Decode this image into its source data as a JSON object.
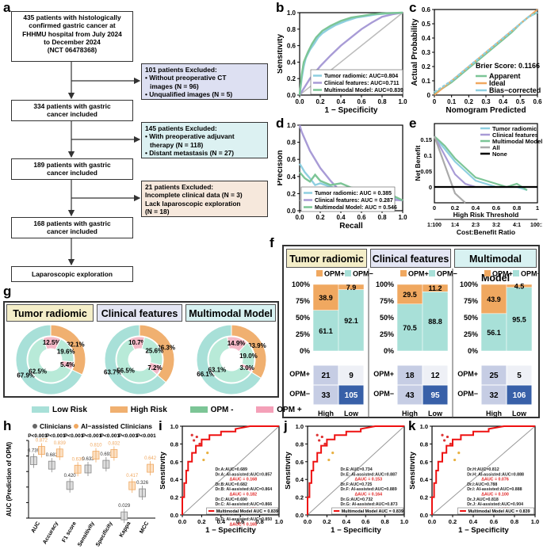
{
  "panel_letters": [
    "a",
    "b",
    "c",
    "d",
    "e",
    "f",
    "g",
    "h",
    "i",
    "j",
    "k"
  ],
  "flowchart": {
    "main_boxes": [
      [
        "435 patients with histologically",
        "confirmed gastric cancer at",
        "FHHMU hospital from July 2024",
        "to December 2024",
        "(NCT 06478368)"
      ],
      [
        "334 patients with gastric",
        "cancer included"
      ],
      [
        "189 patients with gastric",
        "cancer included"
      ],
      [
        "168 patients with gastric",
        "cancer included"
      ],
      [
        "Laparoscopic exploration"
      ]
    ],
    "exclusion_boxes": [
      [
        "101 patients Excluded:",
        "• Without preoperative CT",
        "  images (N = 96)",
        "• Unqualified images (N = 5)"
      ],
      [
        "145 patients Excluded:",
        "• With preoperative adjuvant",
        "  therapy (N = 118)",
        "• Distant metastasis (N = 27)"
      ],
      [
        "21 patients Excluded:",
        "Incomplete clinical data (N = 3)",
        "Lack laparoscopic exploration",
        "(N = 18)"
      ]
    ]
  },
  "colors": {
    "tumor": "#8ecfe0",
    "clinical": "#a89bd6",
    "multimodal": "#7cc596",
    "opm_pos": "#f0a860",
    "opm_neg": "#a8e0d8",
    "low_risk": "#a8e0d8",
    "high_risk": "#f0b070",
    "pink": "#f4a0b8",
    "roc_red": "#ee1111"
  },
  "chart_data": [
    {
      "id": "b",
      "type": "line",
      "xlabel": "1 − Specificity",
      "ylabel": "Sensitivity",
      "xlim": [
        0,
        1
      ],
      "ylim": [
        0,
        1
      ],
      "ticks": [
        "0.0",
        "0.2",
        "0.4",
        "0.6",
        "0.8",
        "1.0"
      ],
      "series": [
        {
          "name": "Tumor radiomic: AUC=0.804",
          "color": "#8ecfe0",
          "x": [
            0,
            0.02,
            0.04,
            0.06,
            0.1,
            0.14,
            0.18,
            0.22,
            0.28,
            0.35,
            0.45,
            0.55,
            0.65,
            0.75,
            0.85,
            1
          ],
          "y": [
            0,
            0.2,
            0.35,
            0.45,
            0.55,
            0.62,
            0.7,
            0.75,
            0.8,
            0.85,
            0.9,
            0.94,
            0.96,
            0.98,
            0.99,
            1
          ]
        },
        {
          "name": "Clinical features: AUC=0.711",
          "color": "#a89bd6",
          "x": [
            0,
            0.05,
            0.1,
            0.2,
            0.3,
            0.4,
            0.5,
            0.6,
            0.7,
            0.8,
            0.9,
            1
          ],
          "y": [
            0,
            0.1,
            0.2,
            0.35,
            0.48,
            0.6,
            0.7,
            0.8,
            0.88,
            0.95,
            0.98,
            1
          ]
        },
        {
          "name": "Multimodal Model: AUC=0.839",
          "color": "#7cc596",
          "x": [
            0,
            0.02,
            0.04,
            0.08,
            0.12,
            0.16,
            0.22,
            0.3,
            0.4,
            0.5,
            0.6,
            0.7,
            0.8,
            1
          ],
          "y": [
            0,
            0.25,
            0.4,
            0.52,
            0.62,
            0.7,
            0.78,
            0.84,
            0.9,
            0.94,
            0.96,
            0.98,
            0.99,
            1
          ]
        }
      ]
    },
    {
      "id": "c",
      "type": "line",
      "xlabel": "Nomogram Predicted",
      "ylabel": "Actual Probability",
      "xlim": [
        0,
        0.6
      ],
      "ylim": [
        0,
        0.6
      ],
      "ticks": [
        "0",
        "0.1",
        "0.2",
        "0.3",
        "0.4",
        "0.5",
        "0.6"
      ],
      "annotation": "Brier Score: 0.1166",
      "series": [
        {
          "name": "Apparent",
          "color": "#7cc596",
          "x": [
            0,
            0.05,
            0.1,
            0.15,
            0.2,
            0.25,
            0.3,
            0.35,
            0.4,
            0.45,
            0.5,
            0.55,
            0.6
          ],
          "y": [
            0.01,
            0.05,
            0.09,
            0.14,
            0.19,
            0.24,
            0.29,
            0.34,
            0.39,
            0.44,
            0.5,
            0.55,
            0.58
          ]
        },
        {
          "name": "Ideal",
          "color": "#f0a860",
          "x": [
            0,
            0.6
          ],
          "y": [
            0,
            0.6
          ]
        },
        {
          "name": "Bias−corrected",
          "color": "#8ecfe0",
          "x": [
            0,
            0.05,
            0.1,
            0.15,
            0.2,
            0.25,
            0.3,
            0.35,
            0.4,
            0.45,
            0.5,
            0.55,
            0.6
          ],
          "y": [
            0.02,
            0.06,
            0.1,
            0.15,
            0.2,
            0.25,
            0.3,
            0.35,
            0.4,
            0.45,
            0.5,
            0.55,
            0.58
          ]
        }
      ]
    },
    {
      "id": "d",
      "type": "line",
      "xlabel": "Recall",
      "ylabel": "Precision",
      "xlim": [
        0,
        1
      ],
      "ylim": [
        0,
        1
      ],
      "ticks": [
        "0.0",
        "0.2",
        "0.4",
        "0.6",
        "0.8",
        "1.0"
      ],
      "series": [
        {
          "name": "Tumor radiomic: AUC = 0.385",
          "color": "#8ecfe0",
          "x": [
            0,
            0.05,
            0.1,
            0.15,
            0.2,
            0.3,
            0.4,
            0.5,
            0.6,
            0.7,
            0.8,
            0.9,
            0.95,
            1
          ],
          "y": [
            0.55,
            0.45,
            0.38,
            0.3,
            0.32,
            0.28,
            0.25,
            0.24,
            0.22,
            0.2,
            0.18,
            0.15,
            0.14,
            0.12
          ]
        },
        {
          "name": "Clinical features: AUC = 0.287",
          "color": "#a89bd6",
          "x": [
            0,
            0.02,
            0.1,
            0.2,
            0.3,
            0.4,
            0.5,
            0.6,
            0.7,
            0.8,
            0.9,
            1
          ],
          "y": [
            1,
            0.92,
            0.7,
            0.5,
            0.35,
            0.22,
            0.18,
            0.16,
            0.15,
            0.14,
            0.13,
            0.12
          ]
        },
        {
          "name": "Multimodal Model: AUC = 0.546",
          "color": "#7cc596",
          "x": [
            0,
            0.05,
            0.1,
            0.15,
            0.2,
            0.3,
            0.4,
            0.5,
            0.6,
            0.7,
            0.8,
            0.9,
            0.95,
            1
          ],
          "y": [
            0.45,
            0.38,
            0.34,
            0.42,
            0.35,
            0.3,
            0.32,
            0.27,
            0.25,
            0.22,
            0.2,
            0.18,
            0.15,
            0.12
          ]
        }
      ]
    },
    {
      "id": "e",
      "type": "line",
      "xlabel": "High Risk Threshold",
      "ylabel": "Net Benefit",
      "x2label": "Cost:Benefit Ratio",
      "xlim": [
        0,
        1
      ],
      "ylim": [
        -0.05,
        0.2
      ],
      "xticks": [
        "0",
        "0.2",
        "0.4",
        "0.6",
        "0.8",
        "1"
      ],
      "yticks": [
        "0",
        "0.05",
        "0.1",
        "0.15"
      ],
      "x2ticks": [
        "1:100",
        "1:4",
        "2:3",
        "3:2",
        "4:1",
        "100:1"
      ],
      "series": [
        {
          "name": "Tumor radiomic",
          "color": "#8ecfe0",
          "x": [
            0,
            0.1,
            0.2,
            0.3,
            0.4,
            0.5,
            0.6,
            0.7,
            0.8,
            0.9
          ],
          "y": [
            0.16,
            0.12,
            0.08,
            0.05,
            0.02,
            0.01,
            0,
            0,
            0,
            -0.01
          ]
        },
        {
          "name": "Clinical features",
          "color": "#a89bd6",
          "x": [
            0,
            0.1,
            0.2,
            0.3,
            0.4
          ],
          "y": [
            0.16,
            0.1,
            0.04,
            0.01,
            0
          ]
        },
        {
          "name": "Multimodal Model",
          "color": "#7cc596",
          "x": [
            0,
            0.1,
            0.2,
            0.3,
            0.4,
            0.5,
            0.6,
            0.7,
            0.8,
            0.9
          ],
          "y": [
            0.16,
            0.13,
            0.09,
            0.06,
            0.03,
            0.02,
            0.01,
            0,
            0.01,
            -0.01
          ]
        },
        {
          "name": "All",
          "color": "#aaaaaa",
          "x": [
            0,
            0.1,
            0.2,
            0.3
          ],
          "y": [
            0.16,
            0.07,
            -0.02,
            -0.05
          ]
        },
        {
          "name": "None",
          "color": "#000000",
          "x": [
            0,
            1
          ],
          "y": [
            0,
            0
          ]
        }
      ]
    },
    {
      "id": "f",
      "type": "bar",
      "yticks": [
        "100%",
        "75%",
        "50%",
        "25%",
        "0%"
      ],
      "legend": [
        "OPM+",
        "OPM−"
      ],
      "groups": [
        {
          "title": "Tumor radiomic",
          "categories": [
            "High",
            "Low"
          ],
          "opm_pos": [
            38.9,
            7.9
          ],
          "opm_neg": [
            61.1,
            92.1
          ],
          "matrix": [
            [
              21,
              9
            ],
            [
              33,
              105
            ]
          ]
        },
        {
          "title": "Clinical features",
          "categories": [
            "High",
            "Low"
          ],
          "opm_pos": [
            29.5,
            11.2
          ],
          "opm_neg": [
            70.5,
            88.8
          ],
          "matrix": [
            [
              18,
              12
            ],
            [
              43,
              95
            ]
          ]
        },
        {
          "title": "Multimodal Model",
          "categories": [
            "High",
            "Low"
          ],
          "opm_pos": [
            43.9,
            4.5
          ],
          "opm_neg": [
            56.1,
            95.5
          ],
          "matrix": [
            [
              25,
              5
            ],
            [
              32,
              106
            ]
          ]
        }
      ],
      "matrix_rows": [
        "OPM+",
        "OPM−"
      ]
    },
    {
      "id": "g",
      "type": "pie",
      "legend": [
        "Low Risk",
        "High Risk",
        "OPM -",
        "OPM +"
      ],
      "groups": [
        {
          "title": "Tumor radiomic",
          "outer": [
            67.9,
            32.1
          ],
          "inner": [
            62.5,
            12.5,
            19.6,
            5.4
          ],
          "outer_labels": [
            "67.9%",
            "32.1%"
          ],
          "inner_labels": [
            "62.5%",
            "12.5%",
            "19.6%",
            "5.4%"
          ]
        },
        {
          "title": "Clinical features",
          "outer": [
            63.7,
            36.3
          ],
          "inner": [
            56.5,
            10.7,
            25.6,
            7.2
          ],
          "outer_labels": [
            "63.7%",
            "36.3%"
          ],
          "inner_labels": [
            "56.5%",
            "10.7%",
            "25.6%",
            "7.2%"
          ]
        },
        {
          "title": "Multimodal Model",
          "outer": [
            66.1,
            33.9
          ],
          "inner": [
            63.1,
            14.9,
            19.0,
            3.0
          ],
          "outer_labels": [
            "66.1%",
            "33.9%"
          ],
          "inner_labels": [
            "63.1%",
            "14.9%",
            "19.0%",
            "3.0%"
          ]
        }
      ]
    },
    {
      "id": "h",
      "type": "box",
      "ylabel": "AUC (Prediction of OPM)",
      "legend": [
        "Clinicians",
        "AI−assisted Clinicians"
      ],
      "categories": [
        "AUC",
        "Accuracy",
        "F1 score",
        "Sensitivity",
        "Specificity",
        "Kappa",
        "MCC"
      ],
      "pvalues": [
        "P<0.001",
        "P<0.001",
        "P<0.001",
        "P<0.001",
        "P<0.001",
        "P<0.001",
        "P<0.001"
      ],
      "clinicians": [
        0.739,
        0.682,
        0.42,
        0.633,
        0.693,
        0.029,
        0.326
      ],
      "ai_assisted": [
        0.872,
        0.839,
        0.63,
        0.81,
        0.832,
        0.417,
        0.642
      ],
      "ylim": [
        0,
        1
      ]
    },
    {
      "id": "i",
      "type": "line",
      "xlabel": "1 − Specificity",
      "ylabel": "Sensitivity",
      "legend_text": [
        "Dr.A:AUC=0.689",
        "Dr.A: AI-assisted:AUC=0.857",
        "ΔAUC = 0.168",
        "Dr.B:AUC=0.682",
        "Dr.B: AI-assisted:AUC=0.864",
        "ΔAUC = 0.182",
        "Dr.C:AUC=0.690",
        "Dr.C: AI-assisted:AUC=0.866",
        "ΔAUC = 0.176",
        "Dr.D:AUC=0.685",
        "Dr.D: AI-assisted:AUC=0.850",
        "ΔAUC = 0.165"
      ],
      "model_label": "Multimodal Model AUC = 0.839",
      "ticks": [
        "0.0",
        "0.2",
        "0.4",
        "0.6",
        "0.8",
        "1.0"
      ]
    },
    {
      "id": "j",
      "type": "line",
      "xlabel": "1 − Specificity",
      "ylabel": "Sensitivity",
      "legend_text": [
        "Dr.E:AUC=0.734",
        "Dr.E: AI-assisted:AUC=0.887",
        "ΔAUC = 0.153",
        "Dr.F:AUC=0.725",
        "Dr.F: AI-assisted:AUC=0.889",
        "ΔAUC = 0.164",
        "Dr.G:AUC=0.732",
        "Dr.G: AI-assisted:AUC=0.873",
        "ΔAUC = 0.141"
      ],
      "model_label": "Multimodal Model AUC = 0.839",
      "ticks": [
        "0.0",
        "0.2",
        "0.4",
        "0.6",
        "0.8",
        "1.0"
      ]
    },
    {
      "id": "k",
      "type": "line",
      "xlabel": "1 − Specificity",
      "ylabel": "Sensitivity",
      "legend_text": [
        "Dr.H:AUC=0.812",
        "Dr.H: AI-assisted:AUC=0.888",
        "ΔAUC = 0.076",
        "Dr.I:AUC=0.788",
        "Dr.I: AI-assisted:AUC=0.888",
        "ΔAUC = 0.100",
        "Dr.J:AUC=0.818",
        "Dr.J: AI-assisted:AUC=0.904",
        "ΔAUC = 0.086"
      ],
      "model_label": "Multimodal Model AUC = 0.839",
      "ticks": [
        "0.0",
        "0.2",
        "0.4",
        "0.6",
        "0.8",
        "1.0"
      ]
    }
  ]
}
